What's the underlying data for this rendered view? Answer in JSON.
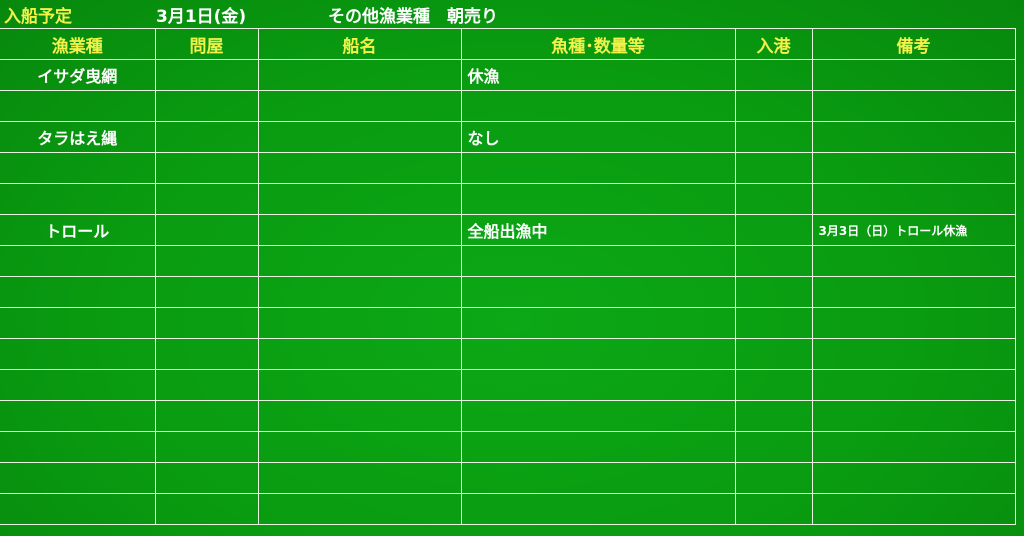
{
  "header": {
    "title": "入船予定",
    "date": "3月1日(金)",
    "category": "その他漁業種　朝売り"
  },
  "columns": [
    "漁業種",
    "問屋",
    "船名",
    "魚種･数量等",
    "入港",
    "備考"
  ],
  "rows": [
    [
      "イサダ曳網",
      "",
      "",
      "休漁",
      "",
      ""
    ],
    [
      "",
      "",
      "",
      "",
      "",
      ""
    ],
    [
      "タラはえ縄",
      "",
      "",
      "なし",
      "",
      ""
    ],
    [
      "",
      "",
      "",
      "",
      "",
      ""
    ],
    [
      "",
      "",
      "",
      "",
      "",
      ""
    ],
    [
      "トロール",
      "",
      "",
      "全船出漁中",
      "",
      "3月3日（日）トロール休漁"
    ],
    [
      "",
      "",
      "",
      "",
      "",
      ""
    ],
    [
      "",
      "",
      "",
      "",
      "",
      ""
    ],
    [
      "",
      "",
      "",
      "",
      "",
      ""
    ],
    [
      "",
      "",
      "",
      "",
      "",
      ""
    ],
    [
      "",
      "",
      "",
      "",
      "",
      ""
    ],
    [
      "",
      "",
      "",
      "",
      "",
      ""
    ],
    [
      "",
      "",
      "",
      "",
      "",
      ""
    ],
    [
      "",
      "",
      "",
      "",
      "",
      ""
    ],
    [
      "",
      "",
      "",
      "",
      "",
      ""
    ]
  ],
  "colors": {
    "background": "#0a9a12",
    "heading": "#f2f24a",
    "text": "#ffffff",
    "grid": "#e8f4e0"
  }
}
